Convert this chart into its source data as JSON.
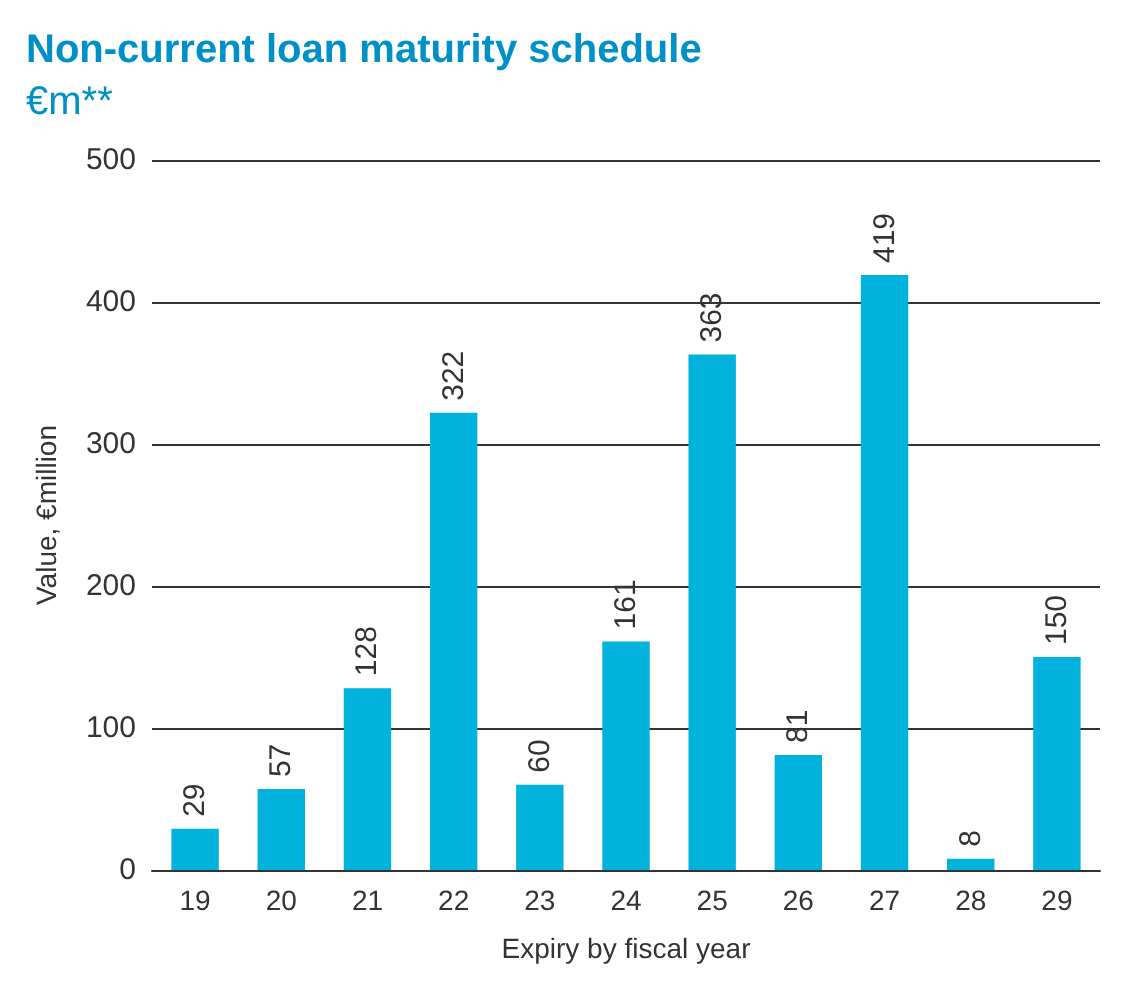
{
  "chart_data": {
    "type": "bar",
    "title": "Non-current loan maturity schedule",
    "subtitle": "€m**",
    "xlabel": "Expiry by fiscal year",
    "ylabel": "Value, €million",
    "categories": [
      "19",
      "20",
      "21",
      "22",
      "23",
      "24",
      "25",
      "26",
      "27",
      "28",
      "29"
    ],
    "values": [
      29,
      57,
      128,
      322,
      60,
      161,
      363,
      81,
      419,
      8,
      150
    ],
    "color": "#00b2dc",
    "ylim": [
      0,
      500
    ],
    "yticks": [
      0,
      100,
      200,
      300,
      400,
      500
    ],
    "grid": "y",
    "data_labels": true
  }
}
